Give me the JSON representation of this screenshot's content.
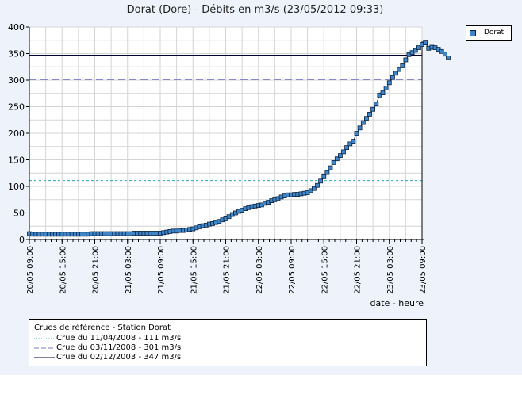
{
  "title": "Dorat (Dore) - Débits en m3/s (23/05/2012 09:33)",
  "legend": {
    "series_label": "Dorat"
  },
  "ref_legend": {
    "title": "Crues de référence - Station Dorat",
    "items": [
      {
        "label": "Crue du 11/04/2008 - 111 m3/s",
        "value": 111,
        "color": "#2aa8b8",
        "style": "dotted"
      },
      {
        "label": "Crue du 03/11/2008 - 301 m3/s",
        "value": 301,
        "color": "#7d7dc8",
        "style": "dashed"
      },
      {
        "label": "Crue du 02/12/2003 - 347 m3/s",
        "value": 347,
        "color": "#000033",
        "style": "solid"
      }
    ]
  },
  "chart_data": {
    "type": "line",
    "title": "Dorat (Dore) - Débits en m3/s (23/05/2012 09:33)",
    "xlabel": "date - heure",
    "ylabel": "",
    "ylim": [
      0,
      400
    ],
    "yticks": [
      0,
      50,
      100,
      150,
      200,
      250,
      300,
      350,
      400
    ],
    "xlim_hours": [
      0,
      72
    ],
    "xticks": [
      {
        "label": "20/05 09:00",
        "h": 0
      },
      {
        "label": "20/05 15:00",
        "h": 6
      },
      {
        "label": "20/05 21:00",
        "h": 12
      },
      {
        "label": "21/05 03:00",
        "h": 18
      },
      {
        "label": "21/05 09:00",
        "h": 24
      },
      {
        "label": "21/05 15:00",
        "h": 30
      },
      {
        "label": "21/05 21:00",
        "h": 36
      },
      {
        "label": "22/05 03:00",
        "h": 42
      },
      {
        "label": "22/05 09:00",
        "h": 48
      },
      {
        "label": "22/05 15:00",
        "h": 54
      },
      {
        "label": "22/05 21:00",
        "h": 60
      },
      {
        "label": "23/05 03:00",
        "h": 66
      },
      {
        "label": "23/05 09:00",
        "h": 72
      }
    ],
    "grid": true,
    "legend_position": "top-right",
    "series": [
      {
        "name": "Dorat",
        "color": "#3f86c8",
        "points": [
          [
            0,
            11
          ],
          [
            0.6,
            10
          ],
          [
            1.2,
            10
          ],
          [
            1.8,
            10
          ],
          [
            2.4,
            10
          ],
          [
            3,
            10
          ],
          [
            3.6,
            10
          ],
          [
            4.2,
            10
          ],
          [
            4.8,
            10
          ],
          [
            5.4,
            10
          ],
          [
            6,
            10
          ],
          [
            6.6,
            10
          ],
          [
            7.2,
            10
          ],
          [
            7.8,
            10
          ],
          [
            8.4,
            10
          ],
          [
            9,
            10
          ],
          [
            9.6,
            10
          ],
          [
            10.2,
            10
          ],
          [
            10.8,
            10
          ],
          [
            11.4,
            11
          ],
          [
            12,
            11
          ],
          [
            12.6,
            11
          ],
          [
            13.2,
            11
          ],
          [
            13.8,
            11
          ],
          [
            14.4,
            11
          ],
          [
            15,
            11
          ],
          [
            15.6,
            11
          ],
          [
            16.2,
            11
          ],
          [
            16.8,
            11
          ],
          [
            17.4,
            11
          ],
          [
            18,
            11
          ],
          [
            18.6,
            11
          ],
          [
            19.2,
            12
          ],
          [
            19.8,
            12
          ],
          [
            20.4,
            12
          ],
          [
            21,
            12
          ],
          [
            21.6,
            12
          ],
          [
            22.2,
            12
          ],
          [
            22.8,
            12
          ],
          [
            23.4,
            12
          ],
          [
            24,
            12
          ],
          [
            24.6,
            13
          ],
          [
            25.2,
            14
          ],
          [
            25.8,
            15
          ],
          [
            26.4,
            16
          ],
          [
            27,
            16
          ],
          [
            27.6,
            17
          ],
          [
            28.2,
            17
          ],
          [
            28.8,
            18
          ],
          [
            29.4,
            19
          ],
          [
            30,
            20
          ],
          [
            30.6,
            22
          ],
          [
            31.2,
            24
          ],
          [
            31.8,
            26
          ],
          [
            32.4,
            27
          ],
          [
            33,
            29
          ],
          [
            33.6,
            30
          ],
          [
            34.2,
            32
          ],
          [
            34.8,
            34
          ],
          [
            35.4,
            37
          ],
          [
            36,
            39
          ],
          [
            36.6,
            43
          ],
          [
            37.2,
            47
          ],
          [
            37.8,
            50
          ],
          [
            38.4,
            53
          ],
          [
            39,
            55
          ],
          [
            39.6,
            58
          ],
          [
            40.2,
            60
          ],
          [
            40.8,
            62
          ],
          [
            41.4,
            63
          ],
          [
            42,
            64
          ],
          [
            42.6,
            65
          ],
          [
            43.2,
            68
          ],
          [
            43.8,
            70
          ],
          [
            44.4,
            73
          ],
          [
            45,
            75
          ],
          [
            45.6,
            77
          ],
          [
            46.2,
            80
          ],
          [
            46.8,
            82
          ],
          [
            47.4,
            84
          ],
          [
            48,
            84
          ],
          [
            48.6,
            85
          ],
          [
            49.2,
            85
          ],
          [
            49.8,
            86
          ],
          [
            50.4,
            87
          ],
          [
            51,
            88
          ],
          [
            51.6,
            92
          ],
          [
            52.2,
            96
          ],
          [
            52.8,
            102
          ],
          [
            53.4,
            110
          ],
          [
            54,
            118
          ],
          [
            54.6,
            126
          ],
          [
            55.2,
            135
          ],
          [
            55.8,
            145
          ],
          [
            56.4,
            152
          ],
          [
            57,
            158
          ],
          [
            57.6,
            165
          ],
          [
            58.2,
            173
          ],
          [
            58.8,
            180
          ],
          [
            59.4,
            185
          ],
          [
            60,
            200
          ],
          [
            60.6,
            210
          ],
          [
            61.2,
            220
          ],
          [
            61.8,
            228
          ],
          [
            62.4,
            236
          ],
          [
            63,
            245
          ],
          [
            63.6,
            255
          ],
          [
            64.2,
            272
          ],
          [
            64.8,
            276
          ],
          [
            65.4,
            285
          ],
          [
            66,
            295
          ],
          [
            66.6,
            305
          ],
          [
            67.2,
            313
          ],
          [
            67.8,
            320
          ],
          [
            68.4,
            327
          ],
          [
            69,
            338
          ],
          [
            69.6,
            348
          ],
          [
            70.2,
            352
          ],
          [
            70.8,
            356
          ],
          [
            71.4,
            361
          ],
          [
            72,
            367
          ],
          [
            72.6,
            370
          ],
          [
            73.2,
            360
          ],
          [
            73.8,
            362
          ],
          [
            74.4,
            361
          ],
          [
            75,
            358
          ],
          [
            75.6,
            354
          ],
          [
            76.2,
            349
          ],
          [
            76.8,
            342
          ]
        ]
      }
    ],
    "reference_lines": [
      111,
      301,
      347
    ]
  }
}
